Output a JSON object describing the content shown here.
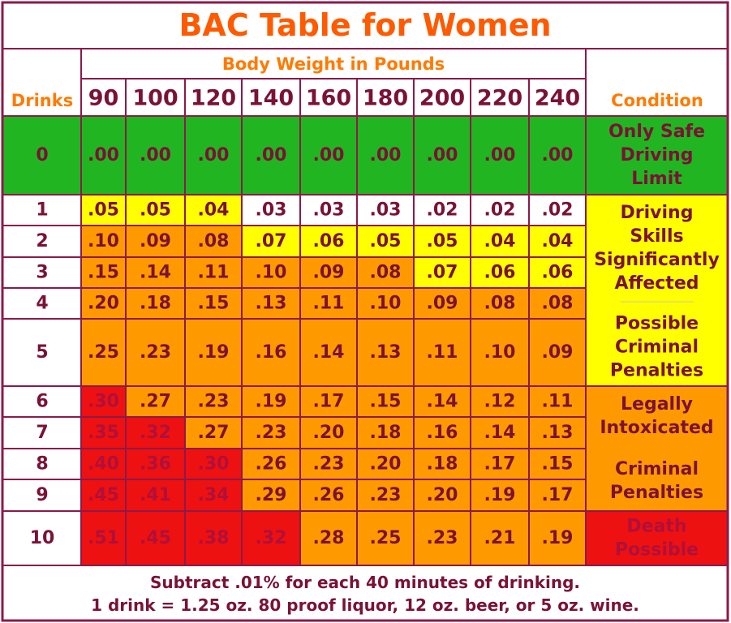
{
  "chart_data": {
    "type": "table",
    "title": "BAC Table for Women",
    "weight_header": "Body Weight in Pounds",
    "drinks_header": "Drinks",
    "condition_header": "Condition",
    "weights": [
      "90",
      "100",
      "120",
      "140",
      "160",
      "180",
      "200",
      "220",
      "240"
    ],
    "drinks": [
      "0",
      "1",
      "2",
      "3",
      "4",
      "5",
      "6",
      "7",
      "8",
      "9",
      "10"
    ],
    "values": [
      [
        ".00",
        ".00",
        ".00",
        ".00",
        ".00",
        ".00",
        ".00",
        ".00",
        ".00"
      ],
      [
        ".05",
        ".05",
        ".04",
        ".03",
        ".03",
        ".03",
        ".02",
        ".02",
        ".02"
      ],
      [
        ".10",
        ".09",
        ".08",
        ".07",
        ".06",
        ".05",
        ".05",
        ".04",
        ".04"
      ],
      [
        ".15",
        ".14",
        ".11",
        ".10",
        ".09",
        ".08",
        ".07",
        ".06",
        ".06"
      ],
      [
        ".20",
        ".18",
        ".15",
        ".13",
        ".11",
        ".10",
        ".09",
        ".08",
        ".08"
      ],
      [
        ".25",
        ".23",
        ".19",
        ".16",
        ".14",
        ".13",
        ".11",
        ".10",
        ".09"
      ],
      [
        ".30",
        ".27",
        ".23",
        ".19",
        ".17",
        ".15",
        ".14",
        ".12",
        ".11"
      ],
      [
        ".35",
        ".32",
        ".27",
        ".23",
        ".20",
        ".18",
        ".16",
        ".14",
        ".13"
      ],
      [
        ".40",
        ".36",
        ".30",
        ".26",
        ".23",
        ".20",
        ".18",
        ".17",
        ".15"
      ],
      [
        ".45",
        ".41",
        ".34",
        ".29",
        ".26",
        ".23",
        ".20",
        ".19",
        ".17"
      ],
      [
        ".51",
        ".45",
        ".38",
        ".32",
        ".28",
        ".25",
        ".23",
        ".21",
        ".19"
      ]
    ],
    "zones": [
      [
        "green",
        "green",
        "green",
        "green",
        "green",
        "green",
        "green",
        "green",
        "green"
      ],
      [
        "yellow",
        "yellow",
        "yellow",
        "white",
        "white",
        "white",
        "white",
        "white",
        "white"
      ],
      [
        "orange",
        "orange",
        "orange",
        "yellow",
        "yellow",
        "yellow",
        "yellow",
        "yellow",
        "yellow"
      ],
      [
        "orange",
        "orange",
        "orange",
        "orange",
        "orange",
        "orange",
        "yellow",
        "yellow",
        "yellow"
      ],
      [
        "orange",
        "orange",
        "orange",
        "orange",
        "orange",
        "orange",
        "orange",
        "orange",
        "orange"
      ],
      [
        "orange",
        "orange",
        "orange",
        "orange",
        "orange",
        "orange",
        "orange",
        "orange",
        "orange"
      ],
      [
        "red",
        "orange",
        "orange",
        "orange",
        "orange",
        "orange",
        "orange",
        "orange",
        "orange"
      ],
      [
        "red",
        "red",
        "orange",
        "orange",
        "orange",
        "orange",
        "orange",
        "orange",
        "orange"
      ],
      [
        "red",
        "red",
        "red",
        "orange",
        "orange",
        "orange",
        "orange",
        "orange",
        "orange"
      ],
      [
        "red",
        "red",
        "red",
        "orange",
        "orange",
        "orange",
        "orange",
        "orange",
        "orange"
      ],
      [
        "red",
        "red",
        "red",
        "red",
        "orange",
        "orange",
        "orange",
        "orange",
        "orange"
      ]
    ],
    "conditions": [
      {
        "lines": [
          "Only Safe",
          "Driving",
          "Limit"
        ],
        "zone": "green",
        "rows": [
          0,
          0
        ]
      },
      {
        "lines": [
          "Driving",
          "Skills",
          "Significantly",
          "Affected"
        ],
        "zone": "yellow",
        "rows": [
          1,
          5
        ],
        "divider": true,
        "lines2": [
          "Possible",
          "Criminal",
          "Penalties"
        ]
      },
      {
        "lines": [
          "Legally",
          "Intoxicated"
        ],
        "zone": "orange",
        "rows": [
          6,
          9
        ],
        "lines2": [
          "Criminal",
          "Penalties"
        ]
      },
      {
        "lines": [
          "Death",
          "Possible"
        ],
        "zone": "red",
        "rows": [
          10,
          10
        ]
      }
    ],
    "footnotes": [
      "Subtract .01% for each 40 minutes of drinking.",
      "1 drink = 1.25 oz. 80 proof liquor, 12 oz. beer, or 5 oz. wine."
    ],
    "colors": {
      "green": "#22b522",
      "yellow": "#ffff00",
      "orange": "#ff9900",
      "red": "#ee1111",
      "white": "#ffffff",
      "border": "#8b1a4a",
      "cell_text": "#7a1235",
      "red_text": "#b0103a",
      "title": "#ff5a00",
      "header_orange": "#ff7a00"
    }
  }
}
